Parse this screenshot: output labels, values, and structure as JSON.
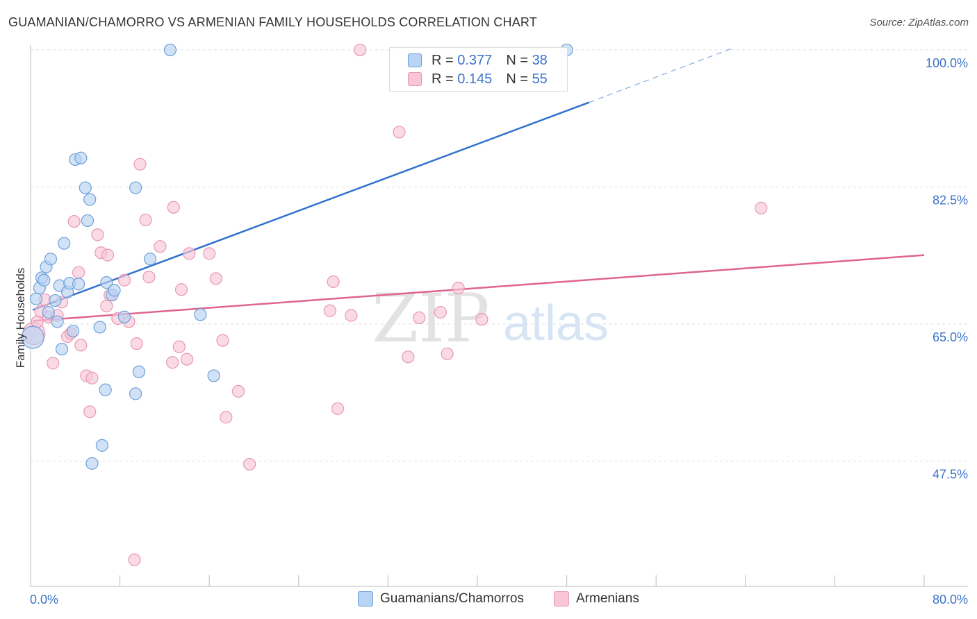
{
  "title": "GUAMANIAN/CHAMORRO VS ARMENIAN FAMILY HOUSEHOLDS CORRELATION CHART",
  "source": "Source: ZipAtlas.com",
  "colors": {
    "blue_fill": "#b8d3f3",
    "blue_stroke": "#6e9fd8",
    "blue_line": "#3070d0",
    "pink_fill": "#f8c6d5",
    "pink_stroke": "#e898b2",
    "pink_line": "#e0648c",
    "axis_label": "#3b73c8",
    "grid": "#dddddd"
  },
  "legend": {
    "rows": [
      {
        "r_label": "R =",
        "r_value": "0.377",
        "n_label": "N =",
        "n_value": "38"
      },
      {
        "r_label": "R =",
        "r_value": "0.145",
        "n_label": "N =",
        "n_value": "55"
      }
    ]
  },
  "bottom_legend": [
    "Guamanians/Chamorros",
    "Armenians"
  ],
  "watermark": {
    "zip": "ZIP",
    "atlas": "atlas"
  },
  "chart_data": {
    "type": "scatter",
    "title": "GUAMANIAN/CHAMORRO VS ARMENIAN FAMILY HOUSEHOLDS CORRELATION CHART",
    "xlabel": "",
    "ylabel": "Family Households",
    "xlim": [
      0,
      80
    ],
    "ylim": [
      31.5,
      101.5
    ],
    "x_tick_labels": [
      "0.0%",
      "80.0%"
    ],
    "y_ticks": [
      47.5,
      65.0,
      82.5,
      100.0
    ],
    "y_tick_labels": [
      "47.5%",
      "65.0%",
      "82.5%",
      "100.0%"
    ],
    "series": [
      {
        "name": "Guamanians/Chamorros",
        "R": 0.377,
        "N": 38,
        "trend": {
          "x0": 0.2,
          "y0": 66.8,
          "x1": 50,
          "y1": 93.3,
          "dash_to_x": 63,
          "dash_to_y": 100.3
        },
        "points": [
          {
            "x": 0.2,
            "y": 63.3,
            "big": true
          },
          {
            "x": 0.5,
            "y": 68.2
          },
          {
            "x": 0.8,
            "y": 69.6
          },
          {
            "x": 1.0,
            "y": 70.9
          },
          {
            "x": 1.2,
            "y": 70.6
          },
          {
            "x": 1.4,
            "y": 72.3
          },
          {
            "x": 1.6,
            "y": 66.5
          },
          {
            "x": 1.8,
            "y": 73.3
          },
          {
            "x": 2.2,
            "y": 68.0
          },
          {
            "x": 2.4,
            "y": 65.3
          },
          {
            "x": 2.6,
            "y": 69.9
          },
          {
            "x": 2.8,
            "y": 61.8
          },
          {
            "x": 3.0,
            "y": 75.3
          },
          {
            "x": 3.3,
            "y": 69.1
          },
          {
            "x": 3.5,
            "y": 70.2
          },
          {
            "x": 3.8,
            "y": 64.1
          },
          {
            "x": 4.0,
            "y": 86.0
          },
          {
            "x": 4.3,
            "y": 70.1
          },
          {
            "x": 4.5,
            "y": 86.2
          },
          {
            "x": 4.9,
            "y": 82.4
          },
          {
            "x": 5.1,
            "y": 78.2
          },
          {
            "x": 5.3,
            "y": 80.9
          },
          {
            "x": 5.5,
            "y": 47.2
          },
          {
            "x": 6.2,
            "y": 64.6
          },
          {
            "x": 6.4,
            "y": 49.5
          },
          {
            "x": 6.7,
            "y": 56.6
          },
          {
            "x": 6.8,
            "y": 70.3
          },
          {
            "x": 7.3,
            "y": 68.7
          },
          {
            "x": 7.5,
            "y": 69.3
          },
          {
            "x": 8.4,
            "y": 65.9
          },
          {
            "x": 9.4,
            "y": 82.4
          },
          {
            "x": 9.4,
            "y": 56.1
          },
          {
            "x": 9.7,
            "y": 58.9
          },
          {
            "x": 10.7,
            "y": 73.3
          },
          {
            "x": 12.5,
            "y": 100.0
          },
          {
            "x": 15.2,
            "y": 66.2
          },
          {
            "x": 16.4,
            "y": 58.4
          },
          {
            "x": 48.0,
            "y": 100.0
          }
        ]
      },
      {
        "name": "Armenians",
        "R": 0.145,
        "N": 55,
        "trend": {
          "x0": 0.2,
          "y0": 65.4,
          "x1": 80,
          "y1": 73.8
        },
        "points": [
          {
            "x": 0.3,
            "y": 63.8,
            "big": true
          },
          {
            "x": 0.6,
            "y": 65.3
          },
          {
            "x": 0.9,
            "y": 66.6
          },
          {
            "x": 1.3,
            "y": 68.1
          },
          {
            "x": 1.6,
            "y": 65.9
          },
          {
            "x": 2.0,
            "y": 60.0
          },
          {
            "x": 2.4,
            "y": 66.1
          },
          {
            "x": 2.8,
            "y": 67.8
          },
          {
            "x": 3.3,
            "y": 63.4
          },
          {
            "x": 3.6,
            "y": 63.8
          },
          {
            "x": 3.9,
            "y": 78.1
          },
          {
            "x": 4.3,
            "y": 71.6
          },
          {
            "x": 4.5,
            "y": 62.3
          },
          {
            "x": 5.0,
            "y": 58.4
          },
          {
            "x": 5.3,
            "y": 53.8
          },
          {
            "x": 5.5,
            "y": 58.1
          },
          {
            "x": 6.0,
            "y": 76.4
          },
          {
            "x": 6.3,
            "y": 74.1
          },
          {
            "x": 6.8,
            "y": 67.3
          },
          {
            "x": 6.9,
            "y": 73.8
          },
          {
            "x": 7.1,
            "y": 68.7
          },
          {
            "x": 7.8,
            "y": 65.7
          },
          {
            "x": 8.4,
            "y": 70.6
          },
          {
            "x": 8.8,
            "y": 65.3
          },
          {
            "x": 9.5,
            "y": 62.5
          },
          {
            "x": 9.8,
            "y": 85.4
          },
          {
            "x": 10.3,
            "y": 78.3
          },
          {
            "x": 10.6,
            "y": 71.0
          },
          {
            "x": 11.6,
            "y": 74.9
          },
          {
            "x": 12.7,
            "y": 60.1
          },
          {
            "x": 12.8,
            "y": 79.9
          },
          {
            "x": 13.3,
            "y": 62.1
          },
          {
            "x": 13.5,
            "y": 69.4
          },
          {
            "x": 14.0,
            "y": 60.5
          },
          {
            "x": 14.2,
            "y": 74.0
          },
          {
            "x": 16.0,
            "y": 74.0
          },
          {
            "x": 16.6,
            "y": 70.8
          },
          {
            "x": 17.2,
            "y": 62.9
          },
          {
            "x": 17.5,
            "y": 53.1
          },
          {
            "x": 18.6,
            "y": 56.4
          },
          {
            "x": 19.6,
            "y": 47.1
          },
          {
            "x": 9.3,
            "y": 34.9
          },
          {
            "x": 27.1,
            "y": 70.4
          },
          {
            "x": 26.8,
            "y": 66.7
          },
          {
            "x": 27.5,
            "y": 54.2
          },
          {
            "x": 28.7,
            "y": 66.1
          },
          {
            "x": 29.5,
            "y": 100.0
          },
          {
            "x": 33.0,
            "y": 89.5
          },
          {
            "x": 33.8,
            "y": 60.8
          },
          {
            "x": 34.8,
            "y": 65.8
          },
          {
            "x": 36.7,
            "y": 66.5
          },
          {
            "x": 37.3,
            "y": 61.2
          },
          {
            "x": 38.3,
            "y": 69.6
          },
          {
            "x": 40.4,
            "y": 65.6
          },
          {
            "x": 65.4,
            "y": 79.8
          }
        ]
      }
    ]
  }
}
